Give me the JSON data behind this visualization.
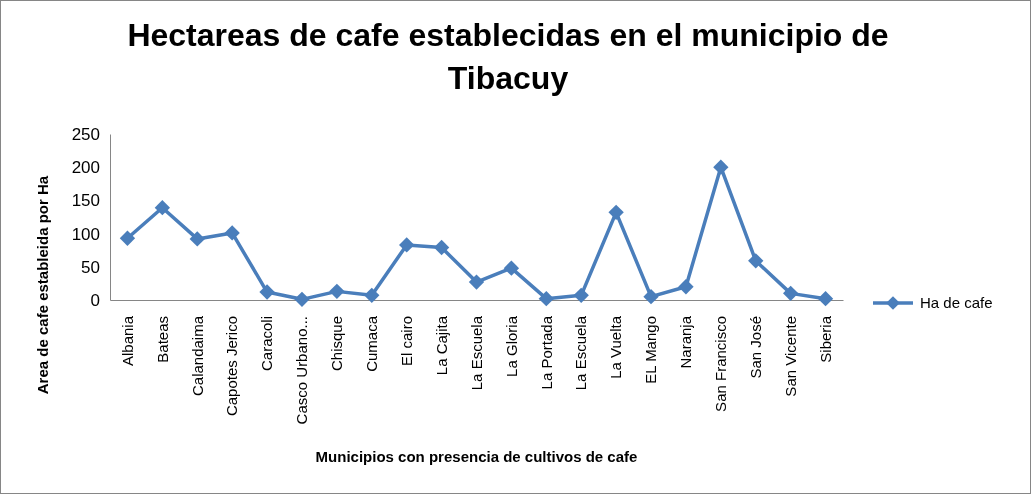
{
  "chart_data": {
    "type": "line",
    "title": "Hectareas de cafe establecidas en el municipio de Tibacuy",
    "xlabel": "Municipios con presencia de cultivos de cafe",
    "ylabel": "Area de cafe estableida por Ha",
    "categories": [
      "Albania",
      "Bateas",
      "Calandaima",
      "Capotes Jerico",
      "Caracoli",
      "Casco Urbano...",
      "Chisque",
      "Cumaca",
      "El cairo",
      "La Cajita",
      "La Escuela",
      "La Gloria",
      "La Portada",
      "La Escuela",
      "La Vuelta",
      "EL Mango",
      "Naranja",
      "San Francisco",
      "San José",
      "San Vicente",
      "Siberia"
    ],
    "series": [
      {
        "name": "Ha de cafe",
        "color": "#4a7ebb",
        "values": [
          93,
          139,
          92,
          101,
          12,
          1,
          13,
          7,
          83,
          79,
          27,
          48,
          2,
          7,
          132,
          5,
          20,
          200,
          59,
          10,
          2
        ]
      }
    ],
    "ylim": [
      0,
      250
    ],
    "yticks": [
      0,
      50,
      100,
      150,
      200,
      250
    ],
    "legend": "right",
    "marker": "diamond",
    "line_style": "solid"
  }
}
